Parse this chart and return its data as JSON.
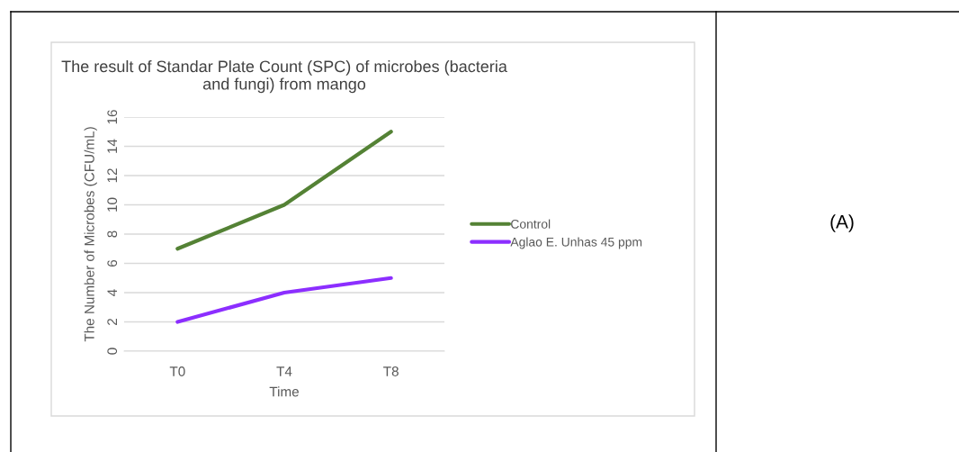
{
  "chart_data": {
    "type": "line",
    "title": "The result of Standar Plate Count (SPC) of microbes (bacteria\nand fungi) from mango",
    "xlabel": "Time",
    "ylabel": "The Number of Microbes (CFU/mL)",
    "categories": [
      "T0",
      "T4",
      "T8"
    ],
    "series": [
      {
        "name": "Control",
        "color": "#548235",
        "values": [
          7,
          10,
          15
        ]
      },
      {
        "name": "Aglao E. Unhas 45 ppm",
        "color": "#8c2eff",
        "values": [
          2,
          4,
          5
        ]
      }
    ],
    "ylim": [
      0,
      16
    ],
    "yticks": [
      0,
      2,
      4,
      6,
      8,
      10,
      12,
      14,
      16
    ],
    "grid": "y",
    "legend": "right",
    "marker": "none",
    "line_style": "solid",
    "annotations": [
      "(A)"
    ]
  }
}
